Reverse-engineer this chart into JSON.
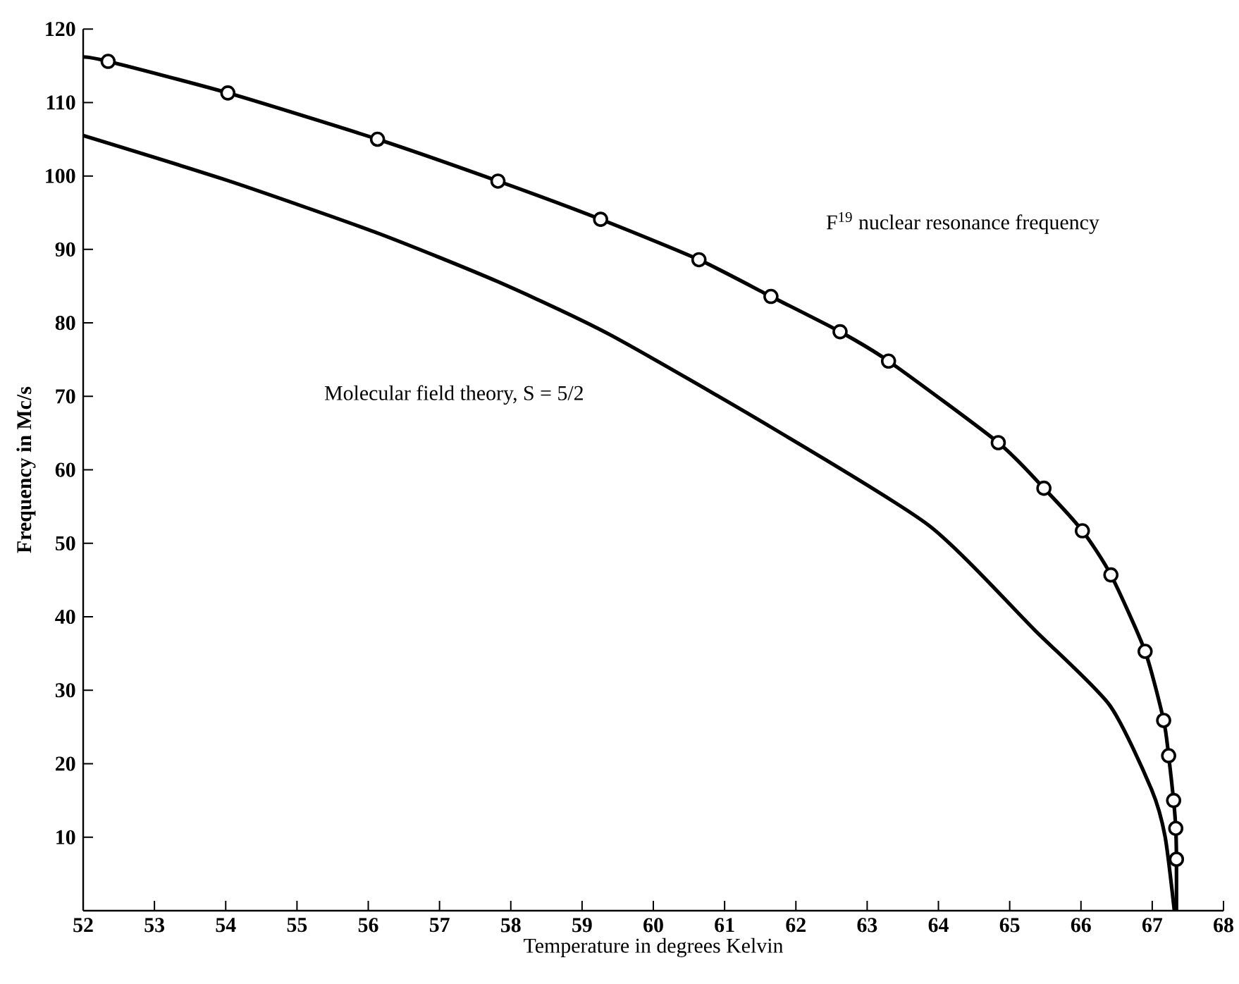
{
  "chart_data": {
    "type": "line",
    "xlabel": "Temperature in degrees Kelvin",
    "ylabel": "Frequency in Mc/s",
    "xlim": [
      52,
      68
    ],
    "ylim": [
      0,
      120
    ],
    "xticks": [
      52,
      53,
      54,
      55,
      56,
      57,
      58,
      59,
      60,
      61,
      62,
      63,
      64,
      65,
      66,
      67,
      68
    ],
    "yticks": [
      10,
      20,
      30,
      40,
      50,
      60,
      70,
      80,
      90,
      100,
      110,
      120
    ],
    "grid": false,
    "series": [
      {
        "type": "scatter",
        "marker": "circle",
        "color": "#000000",
        "x": [
          52.35,
          54.03,
          56.13,
          57.82,
          59.26,
          60.64,
          61.65,
          62.62,
          63.3,
          64.84,
          65.48,
          66.02,
          66.42,
          66.9,
          67.16,
          67.23,
          67.3,
          67.33,
          67.34
        ],
        "values": [
          115.6,
          111.3,
          105.0,
          99.3,
          94.1,
          88.6,
          83.6,
          78.8,
          74.8,
          63.7,
          57.5,
          51.7,
          45.7,
          35.3,
          25.9,
          21.1,
          15.0,
          11.2,
          7.0
        ]
      },
      {
        "marker": "none",
        "line_style": "solid",
        "color": "#000000",
        "x": [
          52.0,
          52.35,
          54.03,
          56.13,
          57.82,
          59.26,
          60.64,
          61.65,
          62.62,
          63.3,
          64.84,
          65.48,
          66.02,
          66.42,
          66.9,
          67.16,
          67.23,
          67.3,
          67.33,
          67.34,
          67.34
        ],
        "values": [
          116.2,
          115.6,
          111.3,
          105.0,
          99.3,
          94.1,
          88.6,
          83.6,
          78.8,
          74.8,
          63.7,
          57.5,
          51.7,
          45.7,
          35.3,
          25.9,
          21.1,
          15.0,
          11.2,
          7.0,
          0
        ]
      },
      {
        "marker": "none",
        "line_style": "solid",
        "color": "#000000",
        "x": [
          52.0,
          54.02,
          56.11,
          57.82,
          59.39,
          61.67,
          63.87,
          65.35,
          66.4,
          66.99,
          67.18,
          67.31
        ],
        "values": [
          105.5,
          99.4,
          92.3,
          85.6,
          78.4,
          65.7,
          52.4,
          38.2,
          28.0,
          16.5,
          10.1,
          0
        ]
      }
    ],
    "annotations": [
      "F$^{19}$ nuclear resonance frequency",
      "Molecular field theory, S = 5/2"
    ]
  }
}
